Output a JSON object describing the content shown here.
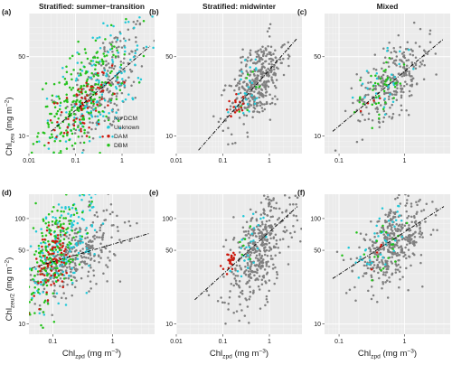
{
  "figure": {
    "ylabel_top": {
      "prefix": "Chl",
      "sub": "zeu",
      "suffix": " (mg m",
      "sup": "−2",
      "close": ")"
    },
    "ylabel_bottom": {
      "prefix": "Chl",
      "sub": "zeu/2",
      "suffix": " (mg m",
      "sup": "−2",
      "close": ")"
    },
    "xlabel": {
      "prefix": "Chl",
      "sub": "zpd",
      "suffix": " (mg m",
      "sup": "−3",
      "close": ")"
    }
  },
  "legend": [
    {
      "label": "No DCM",
      "color": "#7f7f7f"
    },
    {
      "label": "Unknown",
      "color": "#22c8d8"
    },
    {
      "label": "DAM",
      "color": "#cc1a0f"
    },
    {
      "label": "DBM",
      "color": "#23c21a"
    }
  ],
  "chart_data": [
    {
      "type": "scatter",
      "letter": "(a)",
      "title": "Stratified: summer−transition",
      "row": "top",
      "log_x": true,
      "log_y": true,
      "xlim": [
        0.01,
        5
      ],
      "ylim": [
        7,
        120
      ],
      "x_ticks": [
        "0.01",
        "0.1",
        "1"
      ],
      "y_ticks": [
        "10",
        "50"
      ],
      "fit_line": {
        "x": [
          0.03,
          4
        ],
        "y": [
          11,
          62
        ]
      },
      "clusters": [
        {
          "series": "No DCM",
          "cx": 0.45,
          "cy": 28,
          "sx": 0.45,
          "sy": 0.28,
          "n": 220
        },
        {
          "series": "Unknown",
          "cx": 0.3,
          "cy": 25,
          "sx": 0.5,
          "sy": 0.33,
          "n": 160
        },
        {
          "series": "DBM",
          "cx": 0.13,
          "cy": 21,
          "sx": 0.45,
          "sy": 0.25,
          "n": 240
        },
        {
          "series": "DAM",
          "cx": 0.15,
          "cy": 18,
          "sx": 0.3,
          "sy": 0.15,
          "n": 70
        }
      ]
    },
    {
      "type": "scatter",
      "letter": "(b)",
      "title": "Stratified: midwinter",
      "row": "top",
      "log_x": true,
      "log_y": true,
      "xlim": [
        0.01,
        5
      ],
      "ylim": [
        7,
        120
      ],
      "x_ticks": [
        "0.01",
        "0.1",
        "1"
      ],
      "y_ticks": [
        "10",
        "50"
      ],
      "fit_line": {
        "x": [
          0.03,
          4
        ],
        "y": [
          7.5,
          73
        ]
      },
      "clusters": [
        {
          "series": "No DCM",
          "cx": 0.55,
          "cy": 30,
          "sx": 0.3,
          "sy": 0.2,
          "n": 360
        },
        {
          "series": "Unknown",
          "cx": 0.4,
          "cy": 28,
          "sx": 0.2,
          "sy": 0.16,
          "n": 25
        },
        {
          "series": "DBM",
          "cx": 0.35,
          "cy": 26,
          "sx": 0.15,
          "sy": 0.12,
          "n": 8
        },
        {
          "series": "DAM",
          "cx": 0.19,
          "cy": 18,
          "sx": 0.12,
          "sy": 0.08,
          "n": 16
        }
      ]
    },
    {
      "type": "scatter",
      "letter": "(c)",
      "title": "Mixed",
      "row": "top",
      "log_x": true,
      "log_y": true,
      "xlim": [
        0.06,
        5
      ],
      "ylim": [
        7,
        120
      ],
      "x_ticks": [
        "0.1",
        "1"
      ],
      "y_ticks": [
        "10",
        "50"
      ],
      "fit_line": {
        "x": [
          0.08,
          4
        ],
        "y": [
          11,
          72
        ]
      },
      "clusters": [
        {
          "series": "No DCM",
          "cx": 0.7,
          "cy": 32,
          "sx": 0.28,
          "sy": 0.18,
          "n": 260
        },
        {
          "series": "Unknown",
          "cx": 0.5,
          "cy": 28,
          "sx": 0.22,
          "sy": 0.15,
          "n": 30
        },
        {
          "series": "DBM",
          "cx": 0.4,
          "cy": 25,
          "sx": 0.22,
          "sy": 0.15,
          "n": 40
        },
        {
          "series": "DAM",
          "cx": 0.3,
          "cy": 19,
          "sx": 0.1,
          "sy": 0.08,
          "n": 4
        }
      ]
    },
    {
      "type": "scatter",
      "letter": "(d)",
      "title": "",
      "row": "bottom",
      "log_x": true,
      "log_y": true,
      "xlim": [
        0.04,
        5
      ],
      "ylim": [
        8,
        170
      ],
      "x_ticks": [
        "0.1",
        "1"
      ],
      "y_ticks": [
        "10",
        "50",
        "100"
      ],
      "fit_line": {
        "x": [
          0.045,
          4
        ],
        "y": [
          34,
          72
        ]
      },
      "clusters": [
        {
          "series": "No DCM",
          "cx": 0.25,
          "cy": 45,
          "sx": 0.35,
          "sy": 0.2,
          "n": 300
        },
        {
          "series": "Unknown",
          "cx": 0.15,
          "cy": 55,
          "sx": 0.3,
          "sy": 0.3,
          "n": 160
        },
        {
          "series": "DBM",
          "cx": 0.1,
          "cy": 48,
          "sx": 0.25,
          "sy": 0.28,
          "n": 200
        },
        {
          "series": "DAM",
          "cx": 0.1,
          "cy": 42,
          "sx": 0.15,
          "sy": 0.18,
          "n": 80
        }
      ]
    },
    {
      "type": "scatter",
      "letter": "(e)",
      "title": "",
      "row": "bottom",
      "log_x": true,
      "log_y": true,
      "xlim": [
        0.01,
        5
      ],
      "ylim": [
        8,
        170
      ],
      "x_ticks": [
        "0.01",
        "0.1",
        "1"
      ],
      "y_ticks": [
        "10",
        "50",
        "100"
      ],
      "fit_line": {
        "x": [
          0.025,
          4
        ],
        "y": [
          17,
          130
        ]
      },
      "clusters": [
        {
          "series": "No DCM",
          "cx": 0.6,
          "cy": 50,
          "sx": 0.35,
          "sy": 0.28,
          "n": 420
        },
        {
          "series": "Unknown",
          "cx": 0.4,
          "cy": 65,
          "sx": 0.2,
          "sy": 0.16,
          "n": 25
        },
        {
          "series": "DBM",
          "cx": 0.3,
          "cy": 55,
          "sx": 0.15,
          "sy": 0.1,
          "n": 6
        },
        {
          "series": "DAM",
          "cx": 0.15,
          "cy": 40,
          "sx": 0.08,
          "sy": 0.06,
          "n": 25
        }
      ]
    },
    {
      "type": "scatter",
      "letter": "(f)",
      "title": "",
      "row": "bottom",
      "log_x": true,
      "log_y": true,
      "xlim": [
        0.06,
        5
      ],
      "ylim": [
        8,
        170
      ],
      "x_ticks": [
        "0.1",
        "1"
      ],
      "y_ticks": [
        "10",
        "50",
        "100"
      ],
      "fit_line": {
        "x": [
          0.08,
          4
        ],
        "y": [
          27,
          130
        ]
      },
      "clusters": [
        {
          "series": "No DCM",
          "cx": 0.65,
          "cy": 55,
          "sx": 0.28,
          "sy": 0.2,
          "n": 400
        },
        {
          "series": "Unknown",
          "cx": 0.5,
          "cy": 62,
          "sx": 0.22,
          "sy": 0.16,
          "n": 40
        },
        {
          "series": "DBM",
          "cx": 0.5,
          "cy": 55,
          "sx": 0.22,
          "sy": 0.15,
          "n": 20
        },
        {
          "series": "DAM",
          "cx": 0.3,
          "cy": 48,
          "sx": 0.1,
          "sy": 0.06,
          "n": 4
        }
      ]
    }
  ]
}
